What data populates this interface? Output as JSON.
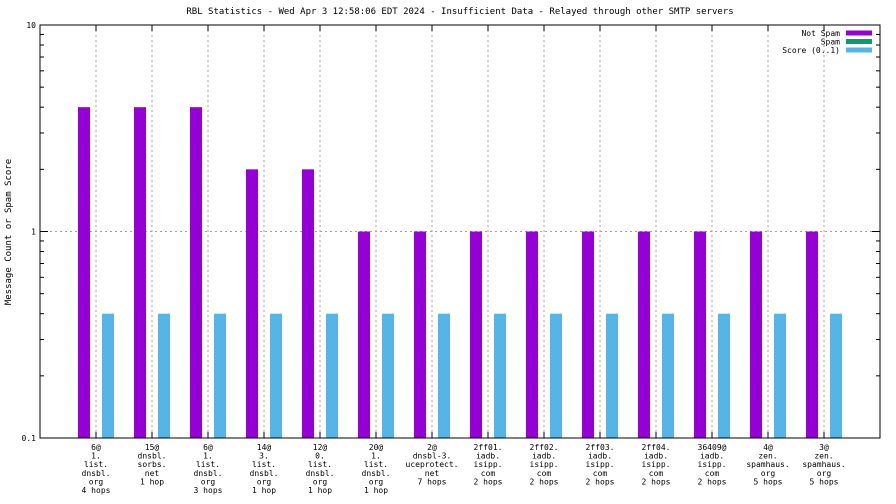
{
  "chart_data": {
    "type": "bar",
    "title": "RBL Statistics - Wed Apr  3 12:58:06 EDT 2024 - Insufficient Data - Relayed through other SMTP servers",
    "ylabel": "Message Count or Spam Score",
    "xlabel": "",
    "yscale": "log",
    "ylim": [
      0.1,
      10
    ],
    "yticks": [
      "0.1",
      "1",
      "10"
    ],
    "ytick_values": [
      0.1,
      1,
      10
    ],
    "grid": true,
    "legend_position": "top-right",
    "categories": [
      [
        "6@",
        "1.",
        "list.",
        "dnsbl.",
        "org",
        "4 hops"
      ],
      [
        "15@",
        "dnsbl.",
        "sorbs.",
        "net",
        "1 hop"
      ],
      [
        "6@",
        "1.",
        "list.",
        "dnsbl.",
        "org",
        "3 hops"
      ],
      [
        "14@",
        "3.",
        "list.",
        "dnsbl.",
        "org",
        "1 hop"
      ],
      [
        "12@",
        "0.",
        "list.",
        "dnsbl.",
        "org",
        "1 hop"
      ],
      [
        "20@",
        "1.",
        "list.",
        "dnsbl.",
        "org",
        "1 hop"
      ],
      [
        "2@",
        "dnsbl-3.",
        "uceprotect.",
        "net",
        "7 hops"
      ],
      [
        "2ff01.",
        "iadb.",
        "isipp.",
        "com",
        "2 hops"
      ],
      [
        "2ff02.",
        "iadb.",
        "isipp.",
        "com",
        "2 hops"
      ],
      [
        "2ff03.",
        "iadb.",
        "isipp.",
        "com",
        "2 hops"
      ],
      [
        "2ff04.",
        "iadb.",
        "isipp.",
        "com",
        "2 hops"
      ],
      [
        "36409@",
        "iadb.",
        "isipp.",
        "com",
        "2 hops"
      ],
      [
        "4@",
        "zen.",
        "spamhaus.",
        "org",
        "5 hops"
      ],
      [
        "3@",
        "zen.",
        "spamhaus.",
        "org",
        "5 hops"
      ]
    ],
    "series": [
      {
        "name": "Not Spam",
        "color": "#9400d3",
        "values": [
          4,
          4,
          4,
          2,
          2,
          1,
          1,
          1,
          1,
          1,
          1,
          1,
          1,
          1
        ]
      },
      {
        "name": "Spam",
        "color": "#009e73",
        "values": [
          0,
          0,
          0,
          0,
          0,
          0,
          0,
          0,
          0,
          0,
          0,
          0,
          0,
          0
        ]
      },
      {
        "name": "Score (0..1)",
        "color": "#56b4e9",
        "values": [
          0.4,
          0.4,
          0.4,
          0.4,
          0.4,
          0.4,
          0.4,
          0.4,
          0.4,
          0.4,
          0.4,
          0.4,
          0.4,
          0.4
        ]
      }
    ]
  }
}
